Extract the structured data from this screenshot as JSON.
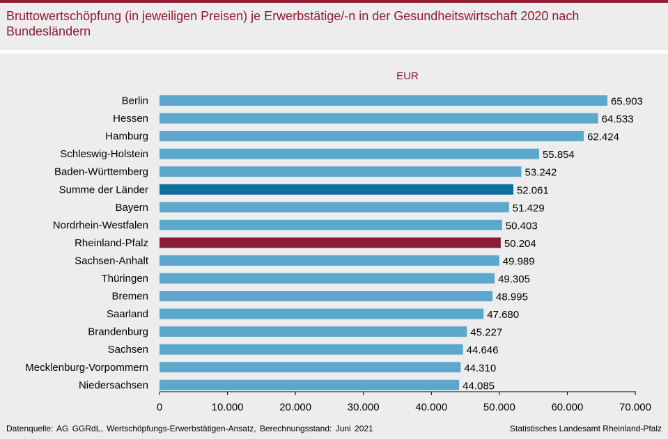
{
  "title": "Bruttowertschöpfung (in jeweiligen Preisen) je Erwerbstätige/-n in der Gesundheitswirtschaft 2020 nach Bundesländern",
  "colors": {
    "accent": "#8b1c35",
    "bar": "#5ba8cc",
    "highlight_total": "#0c6f9f",
    "highlight_rp": "#8b1c35"
  },
  "chart_data": {
    "type": "bar",
    "orientation": "horizontal",
    "unit_label": "EUR",
    "categories": [
      "Berlin",
      "Hessen",
      "Hamburg",
      "Schleswig-Holstein",
      "Baden-Württemberg",
      "Summe der Länder",
      "Bayern",
      "Nordrhein-Westfalen",
      "Rheinland-Pfalz",
      "Sachsen-Anhalt",
      "Thüringen",
      "Bremen",
      "Saarland",
      "Brandenburg",
      "Sachsen",
      "Mecklenburg-Vorpommern",
      "Niedersachsen"
    ],
    "values": [
      65903,
      64533,
      62424,
      55854,
      53242,
      52061,
      51429,
      50403,
      50204,
      49989,
      49305,
      48995,
      47680,
      45227,
      44646,
      44310,
      44085
    ],
    "value_labels": [
      "65.903",
      "64.533",
      "62.424",
      "55.854",
      "53.242",
      "52.061",
      "51.429",
      "50.403",
      "50.204",
      "49.989",
      "49.305",
      "48.995",
      "47.680",
      "45.227",
      "44.646",
      "44.310",
      "44.085"
    ],
    "highlight": {
      "Summe der Länder": "total",
      "Rheinland-Pfalz": "region"
    },
    "xlim": [
      0,
      70000
    ],
    "xticks": [
      0,
      10000,
      20000,
      30000,
      40000,
      50000,
      60000,
      70000
    ],
    "xtick_labels": [
      "0",
      "10.000",
      "20.000",
      "30.000",
      "40.000",
      "50.000",
      "60.000",
      "70.000"
    ],
    "grid": false
  },
  "footer": {
    "source": "Datenquelle:  AG GGRdL, Wertschöpfungs-Erwerbstätigen-Ansatz,  Berechnungsstand:  Juni 2021",
    "publisher": "Statistisches Landesamt Rheinland-Pfalz"
  }
}
